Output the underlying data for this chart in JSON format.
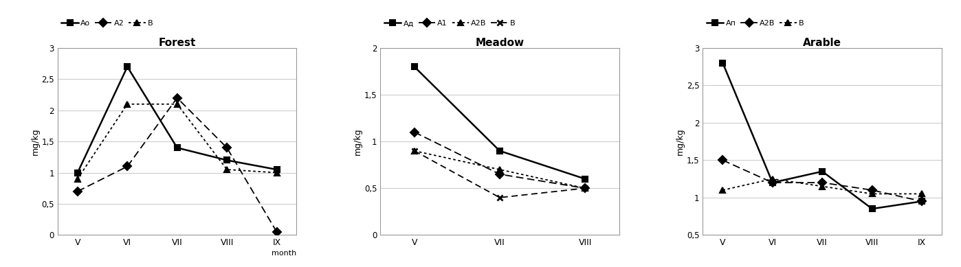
{
  "forest": {
    "title": "Forest",
    "ylabel": "mg/kg",
    "months": [
      "V",
      "VI",
      "VII",
      "VIII",
      "IX"
    ],
    "series": [
      {
        "name": "Ao",
        "y": [
          1.0,
          2.7,
          1.4,
          1.2,
          1.05
        ],
        "linestyle": "solid",
        "marker": "s",
        "dashes": []
      },
      {
        "name": "A2",
        "y": [
          0.7,
          1.1,
          2.2,
          1.4,
          0.05
        ],
        "linestyle": "dashed",
        "marker": "D",
        "dashes": [
          6,
          3
        ]
      },
      {
        "name": "B",
        "y": [
          0.9,
          2.1,
          2.1,
          1.05,
          1.0
        ],
        "linestyle": "dotted",
        "marker": "^",
        "dashes": [
          2,
          2
        ]
      }
    ],
    "ylim": [
      0,
      3
    ],
    "yticks": [
      0,
      0.5,
      1.0,
      1.5,
      2.0,
      2.5,
      3.0
    ],
    "ytick_labels": [
      "0",
      "0,5",
      "1",
      "1,5",
      "2",
      "2,5",
      "3"
    ],
    "show_month_label": true
  },
  "meadow": {
    "title": "Meadow",
    "ylabel": "mg/kg",
    "months": [
      "V",
      "VII",
      "VIII"
    ],
    "series": [
      {
        "name": "Ад",
        "y": [
          1.8,
          0.9,
          0.6
        ],
        "linestyle": "solid",
        "marker": "s",
        "dashes": []
      },
      {
        "name": "A1",
        "y": [
          1.1,
          0.65,
          0.5
        ],
        "linestyle": "dashed",
        "marker": "D",
        "dashes": [
          6,
          3
        ]
      },
      {
        "name": "A2B",
        "y": [
          0.9,
          0.7,
          0.5
        ],
        "linestyle": "dotted",
        "marker": "^",
        "dashes": [
          2,
          2
        ]
      },
      {
        "name": "B",
        "y": [
          0.9,
          0.4,
          0.5
        ],
        "linestyle": "dashed",
        "marker": "x",
        "dashes": [
          5,
          3
        ]
      }
    ],
    "ylim": [
      0,
      2
    ],
    "yticks": [
      0,
      0.5,
      1.0,
      1.5,
      2.0
    ],
    "ytick_labels": [
      "0",
      "0,5",
      "1",
      "1,5",
      "2"
    ],
    "show_month_label": false
  },
  "arable": {
    "title": "Arable",
    "ylabel": "mg/kg",
    "months": [
      "V",
      "VI",
      "VII",
      "VIII",
      "IX"
    ],
    "series": [
      {
        "name": "Ап",
        "y": [
          2.8,
          1.2,
          1.35,
          0.85,
          0.95
        ],
        "linestyle": "solid",
        "marker": "s",
        "dashes": []
      },
      {
        "name": "A2B",
        "y": [
          1.5,
          1.2,
          1.2,
          1.1,
          0.95
        ],
        "linestyle": "dashed",
        "marker": "D",
        "dashes": [
          6,
          3
        ]
      },
      {
        "name": "B",
        "y": [
          1.1,
          1.25,
          1.15,
          1.05,
          1.05
        ],
        "linestyle": "dotted",
        "marker": "^",
        "dashes": [
          2,
          2
        ]
      }
    ],
    "ylim": [
      0.5,
      3
    ],
    "yticks": [
      0.5,
      1.0,
      1.5,
      2.0,
      2.5,
      3.0
    ],
    "ytick_labels": [
      "0,5",
      "1",
      "1,5",
      "2",
      "2,5",
      "3"
    ],
    "show_month_label": false
  }
}
